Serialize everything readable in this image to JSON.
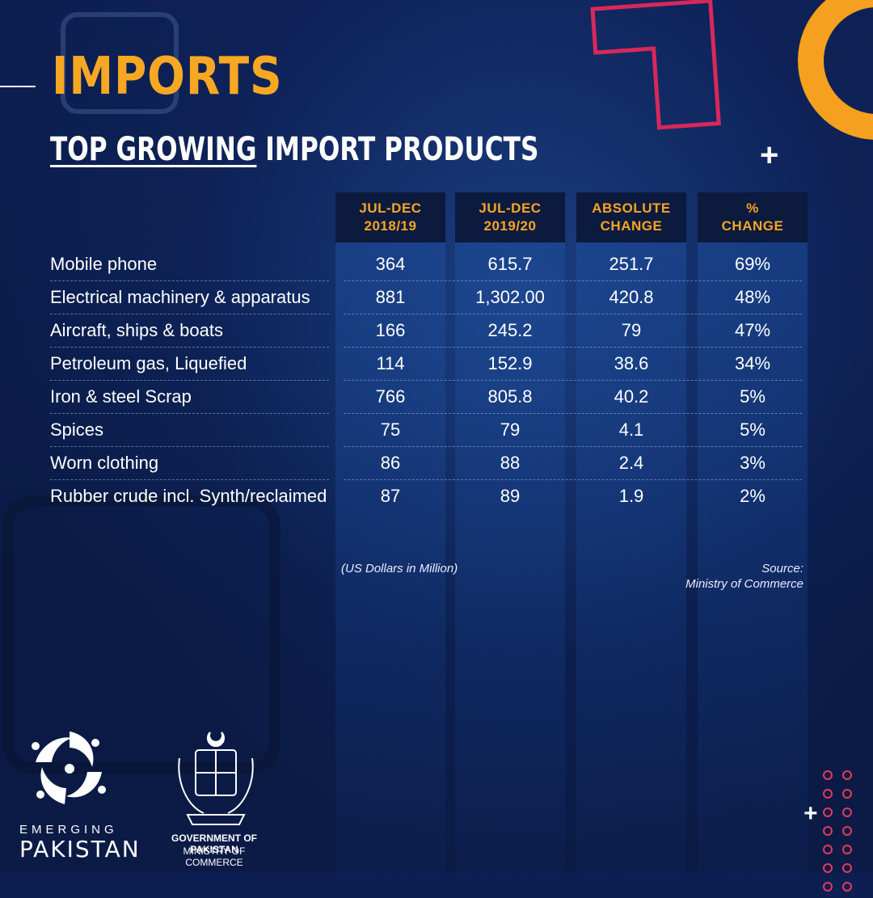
{
  "header": {
    "title": "IMPORTS",
    "subtitle_underlined": "TOP GROWING",
    "subtitle_rest": " IMPORT PRODUCTS"
  },
  "colors": {
    "accent_orange": "#f7a823",
    "accent_pink": "#e23b5a",
    "background": "#0b1d4c",
    "header_cell": "#0c1a3d"
  },
  "chart_data": {
    "type": "table",
    "columns": [
      "JUL-DEC\n2018/19",
      "JUL-DEC\n2019/20",
      "ABSOLUTE\nCHANGE",
      "%\nCHANGE"
    ],
    "rows": [
      {
        "label": "Mobile phone",
        "values": [
          "364",
          "615.7",
          "251.7",
          "69%"
        ]
      },
      {
        "label": "Electrical machinery & apparatus",
        "values": [
          "881",
          "1,302.00",
          "420.8",
          "48%"
        ]
      },
      {
        "label": "Aircraft, ships & boats",
        "values": [
          "166",
          "245.2",
          "79",
          "47%"
        ]
      },
      {
        "label": "Petroleum gas, Liquefied",
        "values": [
          "114",
          "152.9",
          "38.6",
          "34%"
        ]
      },
      {
        "label": "Iron & steel Scrap",
        "values": [
          "766",
          "805.8",
          "40.2",
          "5%"
        ]
      },
      {
        "label": "Spices",
        "values": [
          "75",
          "79",
          "4.1",
          "5%"
        ]
      },
      {
        "label": "Worn clothing",
        "values": [
          "86",
          "88",
          "2.4",
          "3%"
        ]
      },
      {
        "label": "Rubber crude incl. Synth/reclaimed",
        "values": [
          "87",
          "89",
          "1.9",
          "2%"
        ]
      }
    ]
  },
  "notes": {
    "units": "(US Dollars in Million)",
    "source_line1": "Source:",
    "source_line2": "Ministry of Commerce"
  },
  "footer": {
    "brand_top": "EMERGING",
    "brand_bottom": "PAKISTAN",
    "gov_line1": "GOVERNMENT OF PAKISTAN",
    "gov_line2": "MINISTRY OF COMMERCE"
  },
  "icons": [
    "plus-icon",
    "crescent-star-logo",
    "government-seal-logo",
    "dots-pattern"
  ]
}
